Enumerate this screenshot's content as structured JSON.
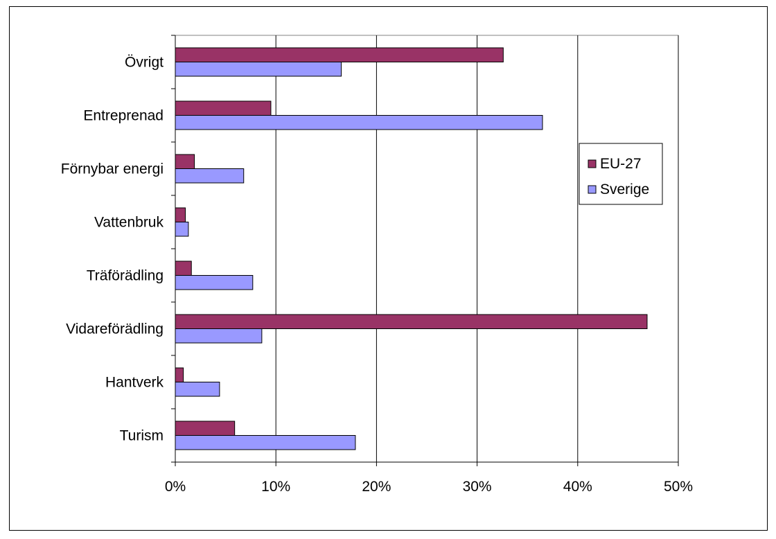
{
  "chart_data": {
    "type": "bar",
    "orientation": "horizontal",
    "categories": [
      "Turism",
      "Hantverk",
      "Vidareförädling",
      "Träförädling",
      "Vattenbruk",
      "Förnybar energi",
      "Entreprenad",
      "Övrigt"
    ],
    "series": [
      {
        "name": "EU-27",
        "color": "#993366",
        "values": [
          5.9,
          0.8,
          46.9,
          1.6,
          1.0,
          1.9,
          9.5,
          32.6
        ]
      },
      {
        "name": "Sverige",
        "color": "#9999ff",
        "values": [
          17.9,
          4.4,
          8.6,
          7.7,
          1.3,
          6.8,
          36.5,
          16.5
        ]
      }
    ],
    "xlim": [
      0,
      50
    ],
    "x_ticks": [
      "0%",
      "10%",
      "20%",
      "30%",
      "40%",
      "50%"
    ],
    "x_tick_values": [
      0,
      10,
      20,
      30,
      40,
      50
    ],
    "grid": "vertical",
    "legend_position": "right",
    "title": "",
    "xlabel": "",
    "ylabel": ""
  }
}
